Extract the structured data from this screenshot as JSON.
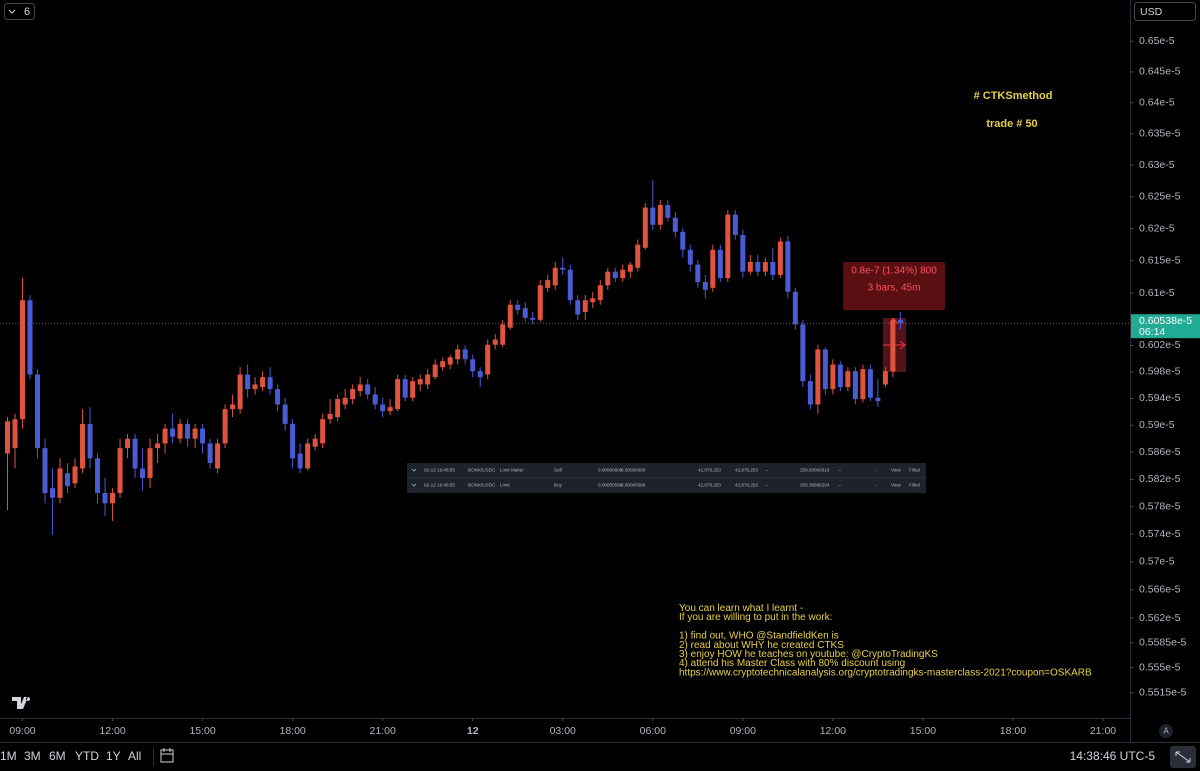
{
  "chart_data": {
    "type": "candlestick",
    "open": [
      5.858e-06,
      5.866e-06,
      5.909e-06,
      6.089e-06,
      5.976e-06,
      5.866e-06,
      5.807e-06,
      5.793e-06,
      5.829e-06,
      5.814e-06,
      5.836e-06,
      5.902e-06,
      5.851e-06,
      5.8e-06,
      5.785e-06,
      5.8e-06,
      5.866e-06,
      5.88e-06,
      5.836e-06,
      5.822e-06,
      5.866e-06,
      5.873e-06,
      5.895e-06,
      5.88e-06,
      5.902e-06,
      5.88e-06,
      5.895e-06,
      5.873e-06,
      5.836e-06,
      5.873e-06,
      5.924e-06,
      5.924e-06,
      5.976e-06,
      5.954e-06,
      5.957e-06,
      5.972e-06,
      5.954e-06,
      5.931e-06,
      5.902e-06,
      5.858e-06,
      5.836e-06,
      5.868e-06,
      5.873e-06,
      5.909e-06,
      5.912e-06,
      5.931e-06,
      5.939e-06,
      5.951e-06,
      5.961e-06,
      5.946e-06,
      5.931e-06,
      5.921e-06,
      5.924e-06,
      5.969e-06,
      5.941e-06,
      5.961e-06,
      5.961e-06,
      5.972e-06,
      5.987e-06,
      5.991e-06,
      5.999e-06,
      6.014e-06,
      5.999e-06,
      5.981e-06,
      5.976e-06,
      6.021e-06,
      6.021e-06,
      6.047e-06,
      6.082e-06,
      6.077e-06,
      6.062e-06,
      6.059e-06,
      6.108e-06,
      6.112e-06,
      6.139e-06,
      6.136e-06,
      6.089e-06,
      6.071e-06,
      6.086e-06,
      6.089e-06,
      6.112e-06,
      6.133e-06,
      6.123e-06,
      6.133e-06,
      6.139e-06,
      6.17e-06,
      6.233e-06,
      6.206e-06,
      6.237e-06,
      6.217e-06,
      6.195e-06,
      6.167e-06,
      6.144e-06,
      6.117e-06,
      6.108e-06,
      6.167e-06,
      6.123e-06,
      6.222e-06,
      6.19e-06,
      6.133e-06,
      6.148e-06,
      6.133e-06,
      6.148e-06,
      6.128e-06,
      6.18e-06,
      6.102e-06,
      6.052e-06,
      5.966e-06,
      5.931e-06,
      6.014e-06,
      5.954e-06,
      5.991e-06,
      5.957e-06,
      5.981e-06,
      5.939e-06,
      5.984e-06,
      5.941e-06,
      5.961e-06,
      5.981e-06,
      6.059e-06
    ],
    "high": [
      5.912e-06,
      5.917e-06,
      6.123e-06,
      6.097e-06,
      5.984e-06,
      5.88e-06,
      5.836e-06,
      5.851e-06,
      5.844e-06,
      5.851e-06,
      5.924e-06,
      5.927e-06,
      5.858e-06,
      5.822e-06,
      5.807e-06,
      5.88e-06,
      5.887e-06,
      5.887e-06,
      5.866e-06,
      5.88e-06,
      5.887e-06,
      5.902e-06,
      5.917e-06,
      5.909e-06,
      5.909e-06,
      5.902e-06,
      5.902e-06,
      5.88e-06,
      5.88e-06,
      5.931e-06,
      5.946e-06,
      5.987e-06,
      5.991e-06,
      5.972e-06,
      5.981e-06,
      5.987e-06,
      5.961e-06,
      5.941e-06,
      5.909e-06,
      5.873e-06,
      5.88e-06,
      5.887e-06,
      5.917e-06,
      5.939e-06,
      5.946e-06,
      5.954e-06,
      5.961e-06,
      5.972e-06,
      5.969e-06,
      5.957e-06,
      5.941e-06,
      5.939e-06,
      5.976e-06,
      5.975e-06,
      5.972e-06,
      5.976e-06,
      5.984e-06,
      5.999e-06,
      6.002e-06,
      6.006e-06,
      6.021e-06,
      6.02e-06,
      6.006e-06,
      5.987e-06,
      6.029e-06,
      6.037e-06,
      6.059e-06,
      6.089e-06,
      6.089e-06,
      6.086e-06,
      6.071e-06,
      6.12e-06,
      6.128e-06,
      6.148e-06,
      6.155e-06,
      6.144e-06,
      6.097e-06,
      6.097e-06,
      6.102e-06,
      6.12e-06,
      6.139e-06,
      6.139e-06,
      6.144e-06,
      6.148e-06,
      6.183e-06,
      6.24e-06,
      6.276e-06,
      6.245e-06,
      6.245e-06,
      6.226e-06,
      6.201e-06,
      6.175e-06,
      6.151e-06,
      6.128e-06,
      6.175e-06,
      6.175e-06,
      6.229e-06,
      6.229e-06,
      6.198e-06,
      6.159e-06,
      6.159e-06,
      6.155e-06,
      6.17e-06,
      6.186e-06,
      6.189e-06,
      6.108e-06,
      6.059e-06,
      5.976e-06,
      6.021e-06,
      6.017e-06,
      5.999e-06,
      5.996e-06,
      5.987e-06,
      5.987e-06,
      5.991e-06,
      5.991e-06,
      5.969e-06,
      5.987e-06,
      6.062e-06,
      6.071e-06
    ],
    "low": [
      5.775e-06,
      5.836e-06,
      5.895e-06,
      5.969e-06,
      5.851e-06,
      5.785e-06,
      5.739e-06,
      5.785e-06,
      5.8e-06,
      5.807e-06,
      5.829e-06,
      5.836e-06,
      5.785e-06,
      5.766e-06,
      5.759e-06,
      5.793e-06,
      5.851e-06,
      5.822e-06,
      5.804e-06,
      5.807e-06,
      5.844e-06,
      5.858e-06,
      5.873e-06,
      5.873e-06,
      5.868e-06,
      5.866e-06,
      5.858e-06,
      5.836e-06,
      5.829e-06,
      5.866e-06,
      5.912e-06,
      5.917e-06,
      5.941e-06,
      5.946e-06,
      5.951e-06,
      5.946e-06,
      5.921e-06,
      5.892e-06,
      5.836e-06,
      5.829e-06,
      5.833e-06,
      5.863e-06,
      5.866e-06,
      5.902e-06,
      5.906e-06,
      5.924e-06,
      5.931e-06,
      5.943e-06,
      5.939e-06,
      5.924e-06,
      5.912e-06,
      5.915e-06,
      5.921e-06,
      5.936e-06,
      5.936e-06,
      5.951e-06,
      5.954e-06,
      5.969e-06,
      5.981e-06,
      5.984e-06,
      5.991e-06,
      5.991e-06,
      5.972e-06,
      5.957e-06,
      5.969e-06,
      6.014e-06,
      6.017e-06,
      6.044e-06,
      6.067e-06,
      6.056e-06,
      6.052e-06,
      6.056e-06,
      6.102e-06,
      6.105e-06,
      6.128e-06,
      6.082e-06,
      6.059e-06,
      6.059e-06,
      6.077e-06,
      6.082e-06,
      6.105e-06,
      6.117e-06,
      6.117e-06,
      6.123e-06,
      6.133e-06,
      6.167e-06,
      6.198e-06,
      6.198e-06,
      6.211e-06,
      6.186e-06,
      6.155e-06,
      6.133e-06,
      6.108e-06,
      6.092e-06,
      6.102e-06,
      6.117e-06,
      6.117e-06,
      6.183e-06,
      6.123e-06,
      6.128e-06,
      6.126e-06,
      6.126e-06,
      6.12e-06,
      6.123e-06,
      6.092e-06,
      6.044e-06,
      5.957e-06,
      5.924e-06,
      5.917e-06,
      5.946e-06,
      5.946e-06,
      5.951e-06,
      5.951e-06,
      5.931e-06,
      5.934e-06,
      5.936e-06,
      5.927e-06,
      5.957e-06,
      5.972e-06,
      6.044e-06
    ],
    "close": [
      5.906e-06,
      5.909e-06,
      6.089e-06,
      5.976e-06,
      5.866e-06,
      5.8e-06,
      5.793e-06,
      5.836e-06,
      5.81e-06,
      5.839e-06,
      5.902e-06,
      5.851e-06,
      5.8e-06,
      5.785e-06,
      5.8e-06,
      5.866e-06,
      5.88e-06,
      5.836e-06,
      5.822e-06,
      5.866e-06,
      5.873e-06,
      5.895e-06,
      5.883e-06,
      5.902e-06,
      5.88e-06,
      5.895e-06,
      5.873e-06,
      5.844e-06,
      5.873e-06,
      5.924e-06,
      5.931e-06,
      5.976e-06,
      5.954e-06,
      5.961e-06,
      5.972e-06,
      5.954e-06,
      5.931e-06,
      5.902e-06,
      5.851e-06,
      5.836e-06,
      5.873e-06,
      5.88e-06,
      5.909e-06,
      5.917e-06,
      5.939e-06,
      5.941e-06,
      5.954e-06,
      5.961e-06,
      5.946e-06,
      5.931e-06,
      5.921e-06,
      5.927e-06,
      5.969e-06,
      5.941e-06,
      5.966e-06,
      5.969e-06,
      5.976e-06,
      5.991e-06,
      5.996e-06,
      6.002e-06,
      6.014e-06,
      5.999e-06,
      5.981e-06,
      5.972e-06,
      6.021e-06,
      6.029e-06,
      6.052e-06,
      6.082e-06,
      6.074e-06,
      6.062e-06,
      6.059e-06,
      6.112e-06,
      6.12e-06,
      6.139e-06,
      6.136e-06,
      6.089e-06,
      6.067e-06,
      6.089e-06,
      6.092e-06,
      6.112e-06,
      6.133e-06,
      6.123e-06,
      6.136e-06,
      6.144e-06,
      6.175e-06,
      6.233e-06,
      6.206e-06,
      6.237e-06,
      6.217e-06,
      6.195e-06,
      6.167e-06,
      6.144e-06,
      6.117e-06,
      6.105e-06,
      6.167e-06,
      6.123e-06,
      6.222e-06,
      6.19e-06,
      6.133e-06,
      6.148e-06,
      6.133e-06,
      6.148e-06,
      6.128e-06,
      6.18e-06,
      6.102e-06,
      6.052e-06,
      5.966e-06,
      5.931e-06,
      6.014e-06,
      5.954e-06,
      5.991e-06,
      5.957e-06,
      5.981e-06,
      5.939e-06,
      5.984e-06,
      5.941e-06,
      5.936e-06,
      5.981e-06,
      6.059e-06,
      6.0538e-06
    ],
    "up_color": "#e0533f",
    "down_color": "#4a5bd4",
    "log_scale": true,
    "xlim": [
      -1,
      149.6
    ],
    "ylim": [
      5.48e-06,
      6.568e-06
    ],
    "xticks": [
      {
        "value": 2,
        "label": "09:00"
      },
      {
        "value": 14,
        "label": "12:00"
      },
      {
        "value": 26,
        "label": "15:00"
      },
      {
        "value": 38,
        "label": "18:00"
      },
      {
        "value": 50,
        "label": "21:00"
      },
      {
        "value": 62,
        "label": "12"
      },
      {
        "value": 74,
        "label": "03:00"
      },
      {
        "value": 86,
        "label": "06:00"
      },
      {
        "value": 98,
        "label": "09:00"
      },
      {
        "value": 110,
        "label": "12:00"
      },
      {
        "value": 122,
        "label": "15:00"
      },
      {
        "value": 134,
        "label": "18:00"
      },
      {
        "value": 146,
        "label": "21:00"
      }
    ],
    "yticks": [
      {
        "value": 6.5e-06,
        "label": "0.65e-5"
      },
      {
        "value": 6.45e-06,
        "label": "0.645e-5"
      },
      {
        "value": 6.4e-06,
        "label": "0.64e-5"
      },
      {
        "value": 6.35e-06,
        "label": "0.635e-5"
      },
      {
        "value": 6.3e-06,
        "label": "0.63e-5"
      },
      {
        "value": 6.25e-06,
        "label": "0.625e-5"
      },
      {
        "value": 6.2e-06,
        "label": "0.62e-5"
      },
      {
        "value": 6.15e-06,
        "label": "0.615e-5"
      },
      {
        "value": 6.1e-06,
        "label": "0.61e-5"
      },
      {
        "value": 6.02e-06,
        "label": "0.602e-5"
      },
      {
        "value": 5.98e-06,
        "label": "0.598e-5"
      },
      {
        "value": 5.94e-06,
        "label": "0.594e-5"
      },
      {
        "value": 5.9e-06,
        "label": "0.59e-5"
      },
      {
        "value": 5.86e-06,
        "label": "0.586e-5"
      },
      {
        "value": 5.82e-06,
        "label": "0.582e-5"
      },
      {
        "value": 5.78e-06,
        "label": "0.578e-5"
      },
      {
        "value": 5.74e-06,
        "label": "0.574e-5"
      },
      {
        "value": 5.7e-06,
        "label": "0.57e-5"
      },
      {
        "value": 5.66e-06,
        "label": "0.566e-5"
      },
      {
        "value": 5.62e-06,
        "label": "0.562e-5"
      },
      {
        "value": 5.585e-06,
        "label": "0.5585e-5"
      },
      {
        "value": 5.55e-06,
        "label": "0.555e-5"
      },
      {
        "value": 5.515e-06,
        "label": "0.5515e-5"
      }
    ],
    "last_price": {
      "value": 6.0538e-06,
      "label": "0.60538e-5"
    },
    "countdown": "06:14",
    "last_price_color": "#22ab94",
    "annotations": [
      "# CTKSmethod",
      "trade # 50"
    ],
    "measure": {
      "change": "0.8e-7 (1.34%) 800",
      "span": "3 bars, 45m"
    },
    "note": [
      "You can learn what I learnt -",
      "If you are willing to put in the work:",
      "1) find out, WHO @StandfieldKen is",
      "2) read about WHY he created CTKS",
      "3) enjoy HOW he teaches on youtube: @CryptoTradingKS",
      "4) attend his Master Class with 80% discount using",
      "https://www.cryptotechnicalanalysis.org/cryptotradingks-masterclass-2021?coupon=OSKARB"
    ]
  },
  "ui": {
    "interval": "6",
    "currency": "USD",
    "auto_scale": "A",
    "ranges": [
      "1M",
      "3M",
      "6M",
      "YTD",
      "1Y",
      "All"
    ],
    "clock": "14:38:46 UTC-5",
    "orders": [
      [
        "02-12 19:48:55",
        "BONK/USDC",
        "Limit Maker",
        "Sell",
        "0.00000606",
        "0.00000606",
        "42,876,253",
        "42,876,253",
        "--",
        "259.83009318",
        "--",
        "-",
        "View",
        "Filled"
      ],
      [
        "02-12 19:48:55",
        "BONK/USDC",
        "Limit",
        "Buy",
        "0.00000598",
        "0.00000598",
        "42,876,253",
        "42,876,253",
        "--",
        "256.39999294",
        "--",
        "-",
        "View",
        "Filled"
      ]
    ]
  }
}
